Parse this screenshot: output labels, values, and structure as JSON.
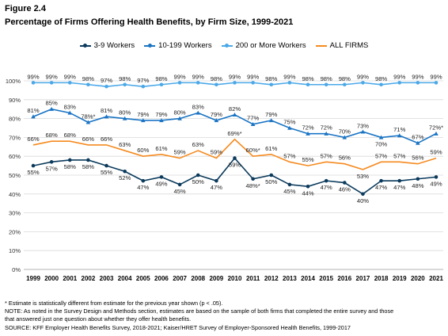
{
  "figure_label": "Figure 2.4",
  "title": "Percentage of Firms Offering Health Benefits, by Firm Size, 1999-2021",
  "notes": [
    "* Estimate is statistically different from estimate for the previous year shown (p < .05).",
    "NOTE: As noted in the Survey Design and Methods section, estimates are based on the sample of both firms that completed the entire survey and those",
    "that answered just one question about whether they offer health benefits.",
    "SOURCE: KFF Employer Health Benefits Survey, 2018-2021; Kaiser/HRET Survey of Employer-Sponsored Health Benefits, 1999-2017"
  ],
  "chart_data": {
    "type": "line",
    "title": "Percentage of Firms Offering Health Benefits, by Firm Size, 1999-2021",
    "xlabel": "",
    "ylabel": "",
    "x": [
      "1999",
      "2000",
      "2001",
      "2002",
      "2003",
      "2004",
      "2005",
      "2006",
      "2007",
      "2008",
      "2009",
      "2010",
      "2011",
      "2012",
      "2013",
      "2014",
      "2015",
      "2016",
      "2017",
      "2018",
      "2019",
      "2020",
      "2021"
    ],
    "yticks": [
      "0%",
      "10%",
      "20%",
      "30%",
      "40%",
      "50%",
      "60%",
      "70%",
      "80%",
      "90%",
      "100%"
    ],
    "ylim": [
      0,
      100
    ],
    "grid": true,
    "legend_position": "top",
    "series": [
      {
        "name": "3-9 Workers",
        "color": "#0b3a5c",
        "values": [
          55,
          57,
          58,
          58,
          55,
          52,
          47,
          49,
          45,
          50,
          47,
          59,
          48,
          50,
          45,
          44,
          47,
          46,
          40,
          47,
          47,
          48,
          49
        ],
        "labels": [
          "55%",
          "57%",
          "58%",
          "58%",
          "55%",
          "52%",
          "47%",
          "49%",
          "45%",
          "50%",
          "47%",
          "59%",
          "48%*",
          "50%",
          "45%",
          "44%",
          "47%",
          "46%",
          "40%",
          "47%",
          "47%",
          "48%",
          "49%"
        ],
        "label_pos": [
          "below",
          "below",
          "below",
          "below",
          "below",
          "below",
          "below",
          "below",
          "below",
          "below",
          "below",
          "below",
          "below",
          "below",
          "below",
          "below",
          "below",
          "below",
          "below",
          "below",
          "below",
          "below",
          "below"
        ]
      },
      {
        "name": "10-199 Workers",
        "color": "#1a74c4",
        "values": [
          81,
          85,
          83,
          78,
          81,
          80,
          79,
          79,
          80,
          83,
          79,
          82,
          77,
          79,
          75,
          72,
          72,
          70,
          73,
          70,
          71,
          67,
          72
        ],
        "labels": [
          "81%",
          "85%",
          "83%",
          "78%*",
          "81%",
          "80%",
          "79%",
          "79%",
          "80%",
          "83%",
          "79%",
          "82%",
          "77%",
          "79%",
          "75%",
          "72%",
          "72%",
          "70%",
          "73%",
          "70%",
          "71%",
          "67%",
          "72%*"
        ],
        "label_pos": [
          "above",
          "above",
          "above",
          "above",
          "above",
          "above",
          "above",
          "above",
          "above",
          "above",
          "above",
          "above",
          "above",
          "above",
          "above",
          "above",
          "above",
          "above",
          "above",
          "below",
          "above",
          "above",
          "above"
        ]
      },
      {
        "name": "200 or More Workers",
        "color": "#4aa8e8",
        "values": [
          99,
          99,
          99,
          98,
          97,
          98,
          97,
          98,
          99,
          99,
          98,
          99,
          99,
          98,
          99,
          98,
          98,
          98,
          99,
          98,
          99,
          99,
          99
        ],
        "labels": [
          "99%",
          "99%",
          "99%",
          "98%",
          "97%",
          "98%",
          "97%",
          "98%",
          "99%",
          "99%",
          "98%",
          "99%",
          "99%",
          "98%",
          "99%",
          "98%",
          "98%",
          "98%",
          "99%",
          "98%",
          "99%",
          "99%",
          "99%"
        ],
        "label_pos": [
          "above",
          "above",
          "above",
          "above",
          "above",
          "above",
          "above",
          "above",
          "above",
          "above",
          "above",
          "above",
          "above",
          "above",
          "above",
          "above",
          "above",
          "above",
          "above",
          "above",
          "above",
          "above",
          "above"
        ]
      },
      {
        "name": "ALL FIRMS",
        "color": "#f58a1f",
        "values": [
          66,
          68,
          68,
          66,
          66,
          63,
          60,
          61,
          59,
          63,
          59,
          69,
          60,
          61,
          57,
          55,
          57,
          56,
          53,
          57,
          57,
          56,
          59
        ],
        "labels": [
          "66%",
          "68%",
          "68%",
          "66%",
          "66%",
          "63%",
          "60%",
          "61%",
          "59%",
          "63%",
          "59%",
          "69%*",
          "60%*",
          "61%",
          "57%",
          "55%",
          "57%",
          "56%",
          "53%",
          "57%",
          "57%",
          "56%",
          "59%"
        ],
        "label_pos": [
          "above",
          "above",
          "above",
          "above",
          "above",
          "above",
          "above",
          "above",
          "above",
          "above",
          "above",
          "above",
          "above",
          "above",
          "above",
          "above",
          "above",
          "above",
          "below",
          "above",
          "above",
          "above",
          "above"
        ]
      }
    ]
  }
}
